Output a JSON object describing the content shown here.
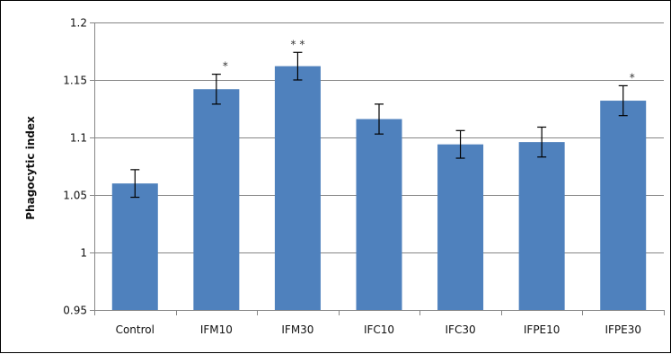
{
  "chart_data": {
    "type": "bar",
    "title": "",
    "xlabel": "",
    "ylabel": "Phagocytic index",
    "categories": [
      "Control",
      "IFM10",
      "IFM30",
      "IFC10",
      "IFC30",
      "IFPE10",
      "IFPE30"
    ],
    "values": [
      1.06,
      1.142,
      1.162,
      1.116,
      1.094,
      1.096,
      1.132
    ],
    "errors": [
      0.012,
      0.013,
      0.012,
      0.013,
      0.012,
      0.013,
      0.013
    ],
    "significance": [
      "",
      "*",
      "* *",
      "",
      "",
      "",
      "*"
    ],
    "ylim": [
      0.95,
      1.2
    ],
    "yticks": [
      "0.95",
      "1",
      "1.05",
      "1.1",
      "1.15",
      "1.2"
    ],
    "grid": true,
    "bar_color": "#4F81BD",
    "grid_color": "#868686"
  }
}
